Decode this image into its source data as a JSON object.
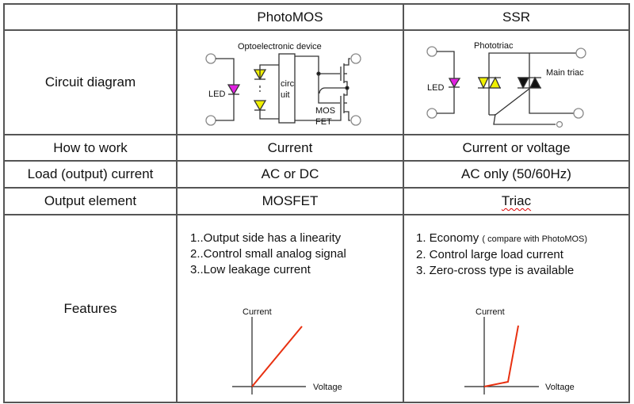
{
  "header": {
    "blank": "",
    "col1": "PhotoMOS",
    "col2": "SSR"
  },
  "rows": [
    {
      "label": "Circuit diagram"
    },
    {
      "label": "How to work",
      "photomos": "Current",
      "ssr": "Current or voltage"
    },
    {
      "label": "Load (output) current",
      "photomos": "AC or DC",
      "ssr": "AC only (50/60Hz)"
    },
    {
      "label": "Output element",
      "photomos": "MOSFET",
      "ssr": "Triac"
    },
    {
      "label": "Features"
    }
  ],
  "photomos_diagram": {
    "title": "Optoelectronic device",
    "led": "LED",
    "circuit_1": "circ",
    "circuit_2": "uit",
    "mos_1": "MOS",
    "mos_2": "FET"
  },
  "ssr_diagram": {
    "phototriac": "Phototriac",
    "main_triac": "Main triac",
    "led": "LED"
  },
  "photomos_features": [
    "1..Output side has a linearity",
    "2..Control small analog signal",
    "3..Low leakage current"
  ],
  "ssr_features": {
    "item1": "1. Economy",
    "item1_note": "( compare with PhotoMOS)",
    "item2": "2. Control large load current",
    "item3": "3. Zero-cross type is available"
  },
  "graphs": {
    "photomos": {
      "ylabel": "Current",
      "xlabel": "Voltage",
      "shape": "linear"
    },
    "ssr": {
      "ylabel": "Current",
      "xlabel": "Voltage",
      "shape": "threshold then steep"
    }
  },
  "colors": {
    "led": "#e020e0",
    "photodiode": "#f0f000",
    "curve": "#e83010",
    "border": "#555555"
  }
}
